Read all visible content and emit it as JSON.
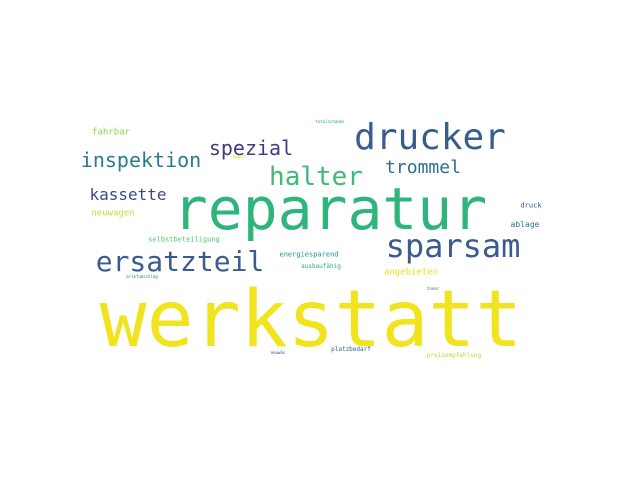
{
  "words": [
    {
      "text": "werkstatt",
      "color": "#f2e31f"
    },
    {
      "text": "reparatur",
      "color": "#2eb57c"
    },
    {
      "text": "drucker",
      "color": "#365d8d"
    },
    {
      "text": "sparsam",
      "color": "#3c5a8f"
    },
    {
      "text": "ersatzteil",
      "color": "#3b5b8c"
    },
    {
      "text": "halter",
      "color": "#3fbb76"
    },
    {
      "text": "inspektion",
      "color": "#2a7b8e"
    },
    {
      "text": "spezial",
      "color": "#443a83"
    },
    {
      "text": "trommel",
      "color": "#2d6f8e"
    },
    {
      "text": "kassette",
      "color": "#3f4788"
    },
    {
      "text": "neuwagen",
      "color": "#c3e03e"
    },
    {
      "text": "fahrbar",
      "color": "#86d549"
    },
    {
      "text": "selbstbeteiligung",
      "color": "#4fc46a"
    },
    {
      "text": "energiesparend",
      "color": "#20938c"
    },
    {
      "text": "ausbaufähig",
      "color": "#29af7f"
    },
    {
      "text": "angebieten",
      "color": "#e2e418"
    },
    {
      "text": "druck",
      "color": "#3a548c"
    },
    {
      "text": "ablage",
      "color": "#2d708e"
    },
    {
      "text": "totalschaden",
      "color": "#22a884"
    },
    {
      "text": "kaputt",
      "color": "#dde318"
    },
    {
      "text": "briefumschlag",
      "color": "#23898e"
    },
    {
      "text": "toner",
      "color": "#33638d"
    },
    {
      "text": "platzbedarf",
      "color": "#32648e"
    },
    {
      "text": "preisempfehlung",
      "color": "#b8de29"
    },
    {
      "text": "neuwäs",
      "color": "#433e85"
    }
  ]
}
